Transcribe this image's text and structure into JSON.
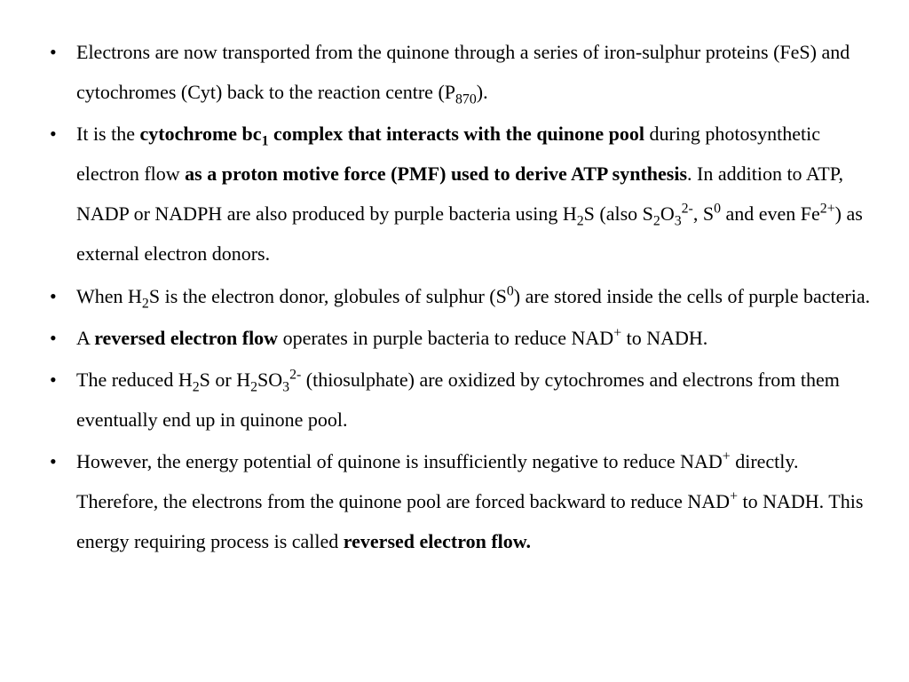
{
  "page": {
    "background_color": "#ffffff",
    "text_color": "#000000",
    "font_family": "Times New Roman",
    "font_size_pt": 17,
    "line_height": 2.05,
    "bullet_char": "•"
  },
  "bullets": [
    {
      "runs": [
        {
          "t": "Electrons are now transported from the quinone through a series of iron-sulphur proteins (FeS) and cytochromes (Cyt) back to the reaction centre (P"
        },
        {
          "t": "870",
          "sub": true
        },
        {
          "t": ")."
        }
      ]
    },
    {
      "runs": [
        {
          "t": "It is the "
        },
        {
          "t": "cytochrome bc",
          "b": true
        },
        {
          "t": "1",
          "b": true,
          "sub": true
        },
        {
          "t": " complex that interacts with the quinone pool",
          "b": true
        },
        {
          "t": " during photosynthetic electron flow "
        },
        {
          "t": "as a proton motive force (PMF) used to derive ATP synthesis",
          "b": true
        },
        {
          "t": ". In addition to ATP, NADP or NADPH are also produced by purple bacteria using H"
        },
        {
          "t": "2",
          "sub": true
        },
        {
          "t": "S (also S"
        },
        {
          "t": "2",
          "sub": true
        },
        {
          "t": "O"
        },
        {
          "t": "3",
          "sub": true
        },
        {
          "t": "2-",
          "sup": true
        },
        {
          "t": ", S"
        },
        {
          "t": "0",
          "sup": true
        },
        {
          "t": " and even Fe"
        },
        {
          "t": "2+",
          "sup": true
        },
        {
          "t": ") as external electron donors."
        }
      ]
    },
    {
      "runs": [
        {
          "t": "When H"
        },
        {
          "t": "2",
          "sub": true
        },
        {
          "t": "S is the electron donor, globules of sulphur (S"
        },
        {
          "t": "0",
          "sup": true
        },
        {
          "t": ") are stored inside the cells of purple bacteria."
        }
      ]
    },
    {
      "runs": [
        {
          "t": "A "
        },
        {
          "t": "reversed electron flow",
          "b": true
        },
        {
          "t": " operates in purple bacteria to reduce NAD"
        },
        {
          "t": "+",
          "sup": true
        },
        {
          "t": " to NADH."
        }
      ]
    },
    {
      "runs": [
        {
          "t": "The reduced H"
        },
        {
          "t": "2",
          "sub": true
        },
        {
          "t": "S or H"
        },
        {
          "t": "2",
          "sub": true
        },
        {
          "t": "SO"
        },
        {
          "t": "3",
          "sub": true
        },
        {
          "t": "2-",
          "sup": true
        },
        {
          "t": " (thiosulphate) are oxidized by cytochromes and electrons from them eventually end up in quinone pool."
        }
      ]
    },
    {
      "runs": [
        {
          "t": "However, the energy potential of quinone is insufficiently negative to reduce NAD"
        },
        {
          "t": "+",
          "sup": true
        },
        {
          "t": " directly. Therefore, the electrons from the quinone pool are forced backward to reduce NAD"
        },
        {
          "t": "+",
          "sup": true
        },
        {
          "t": " to NADH. This energy requiring process is called "
        },
        {
          "t": "reversed electron flow.",
          "b": true
        }
      ]
    }
  ]
}
